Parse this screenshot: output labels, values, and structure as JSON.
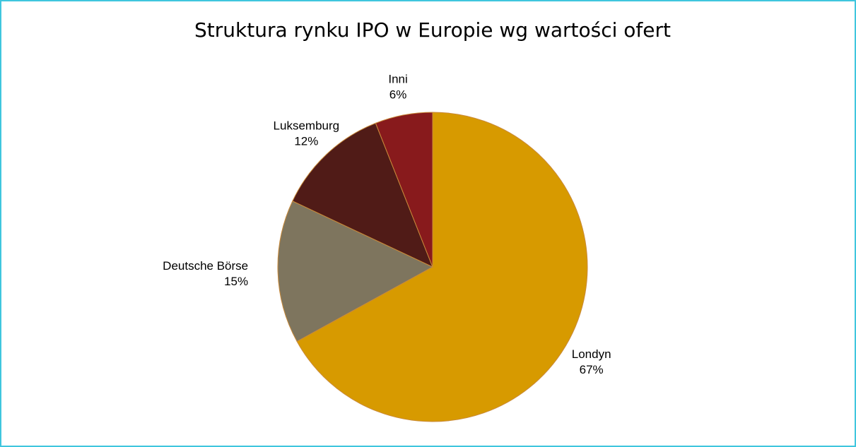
{
  "chart_data": {
    "type": "pie",
    "title": "Struktura rynku IPO w Europie wg wartości ofert",
    "categories": [
      "Londyn",
      "Deutsche Börse",
      "Luksemburg",
      "Inni"
    ],
    "values": [
      67,
      15,
      12,
      6
    ],
    "value_labels": [
      "67%",
      "15%",
      "12%",
      "6%"
    ],
    "colors": [
      "#d79a00",
      "#7e755e",
      "#501b17",
      "#881a1c"
    ]
  }
}
